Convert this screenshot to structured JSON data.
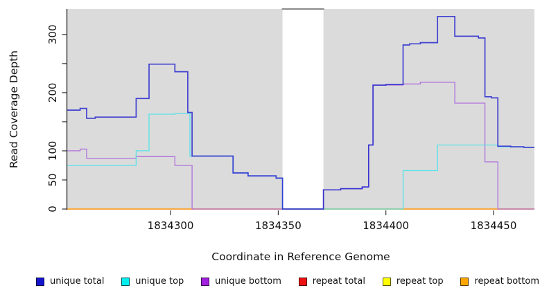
{
  "chart_data": {
    "type": "line",
    "subtype": "step",
    "title": "",
    "xlabel": "Coordinate in Reference Genome",
    "ylabel": "Read Coverage Depth",
    "xlim": [
      1834252,
      1834469
    ],
    "ylim": [
      0,
      345
    ],
    "grid": false,
    "plot_bg_color": "#DBDBDB",
    "gap_region": {
      "x_start": 1834352,
      "x_end": 1834371,
      "fill": "#FFFFFF",
      "top_border_color": "#8A8A8A"
    },
    "x_ticks": [
      {
        "value": 1834300,
        "label": "1834300"
      },
      {
        "value": 1834350,
        "label": "1834350"
      },
      {
        "value": 1834400,
        "label": "1834400"
      },
      {
        "value": 1834450,
        "label": "1834450"
      }
    ],
    "y_ticks": [
      {
        "value": 0,
        "label": "0"
      },
      {
        "value": 50,
        "label": "50"
      },
      {
        "value": 100,
        "label": "100"
      },
      {
        "value": 150,
        "label": ""
      },
      {
        "value": 200,
        "label": "200"
      },
      {
        "value": 250,
        "label": ""
      },
      {
        "value": 300,
        "label": "300"
      }
    ],
    "series": [
      {
        "name": "repeat total",
        "color": "#DE2A22",
        "width": 1.2,
        "opacity": 1,
        "points": [
          [
            1834252,
            0
          ],
          [
            1834469,
            0
          ]
        ]
      },
      {
        "name": "repeat top",
        "color": "#F0F020",
        "width": 1.2,
        "opacity": 1,
        "points": [
          [
            1834252,
            0
          ],
          [
            1834469,
            0
          ]
        ]
      },
      {
        "name": "repeat bottom",
        "color": "#FFA227",
        "width": 1.4,
        "opacity": 1,
        "points": [
          [
            1834252,
            0
          ],
          [
            1834469,
            0
          ]
        ]
      },
      {
        "name": "unique bottom",
        "color": "#B072DC",
        "width": 1.3,
        "opacity": 1,
        "points": [
          [
            1834252,
            100
          ],
          [
            1834258,
            103
          ],
          [
            1834261,
            87
          ],
          [
            1834284,
            90
          ],
          [
            1834302,
            75
          ],
          [
            1834310,
            0
          ],
          [
            1834371,
            33
          ],
          [
            1834379,
            35
          ],
          [
            1834389,
            38
          ],
          [
            1834392,
            110
          ],
          [
            1834394,
            213
          ],
          [
            1834408,
            215
          ],
          [
            1834416,
            218
          ],
          [
            1834432,
            182
          ],
          [
            1834446,
            81
          ],
          [
            1834452,
            0
          ],
          [
            1834469,
            0
          ]
        ]
      },
      {
        "name": "unique top",
        "color": "#4FE3E9",
        "width": 1.3,
        "opacity": 0.95,
        "points": [
          [
            1834252,
            75
          ],
          [
            1834284,
            100
          ],
          [
            1834290,
            163
          ],
          [
            1834302,
            164
          ],
          [
            1834309,
            91
          ],
          [
            1834329,
            62
          ],
          [
            1834336,
            57
          ],
          [
            1834349,
            53
          ],
          [
            1834352,
            0
          ],
          [
            1834408,
            66
          ],
          [
            1834424,
            110
          ],
          [
            1834452,
            107
          ],
          [
            1834464,
            106
          ],
          [
            1834469,
            106
          ]
        ]
      },
      {
        "name": "unique total",
        "color": "#2626CE",
        "width": 1.7,
        "opacity": 0.85,
        "points": [
          [
            1834252,
            170
          ],
          [
            1834258,
            173
          ],
          [
            1834261,
            156
          ],
          [
            1834265,
            158
          ],
          [
            1834284,
            190
          ],
          [
            1834290,
            249
          ],
          [
            1834302,
            236
          ],
          [
            1834308,
            166
          ],
          [
            1834310,
            91
          ],
          [
            1834329,
            62
          ],
          [
            1834336,
            57
          ],
          [
            1834349,
            53
          ],
          [
            1834352,
            0
          ],
          [
            1834371,
            33
          ],
          [
            1834379,
            35
          ],
          [
            1834389,
            38
          ],
          [
            1834392,
            110
          ],
          [
            1834394,
            213
          ],
          [
            1834400,
            214
          ],
          [
            1834408,
            282
          ],
          [
            1834411,
            284
          ],
          [
            1834416,
            286
          ],
          [
            1834424,
            331
          ],
          [
            1834432,
            297
          ],
          [
            1834443,
            294
          ],
          [
            1834446,
            193
          ],
          [
            1834449,
            191
          ],
          [
            1834452,
            108
          ],
          [
            1834458,
            107
          ],
          [
            1834464,
            106
          ],
          [
            1834469,
            106
          ]
        ]
      }
    ]
  },
  "legend": {
    "items": [
      {
        "label": "unique total",
        "color": "#1414CC"
      },
      {
        "label": "unique top",
        "color": "#00EEEE"
      },
      {
        "label": "unique bottom",
        "color": "#A020DD"
      },
      {
        "label": "repeat total",
        "color": "#EE1111"
      },
      {
        "label": "repeat top",
        "color": "#FFFF00"
      },
      {
        "label": "repeat bottom",
        "color": "#FFA500"
      }
    ]
  }
}
